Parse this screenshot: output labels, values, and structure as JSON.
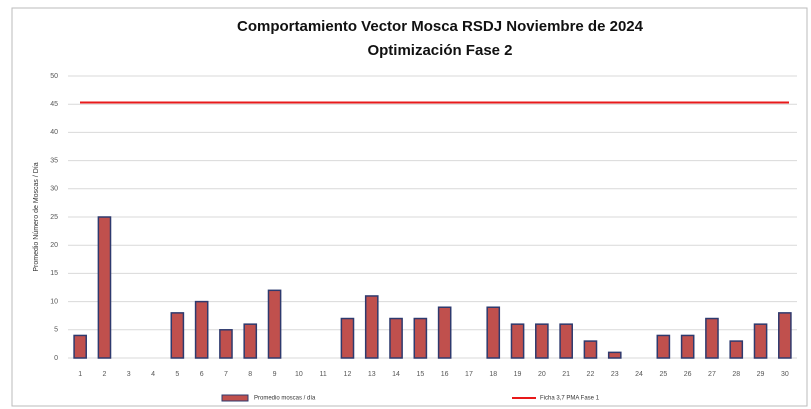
{
  "chart_data": {
    "type": "bar",
    "title": [
      "Comportamiento  Vector Mosca RSDJ Noviembre de 2024",
      "Optimización  Fase 2"
    ],
    "y_label": "Promedio Número de Moscas  / Día",
    "categories": [
      "1",
      "2",
      "3",
      "4",
      "5",
      "6",
      "7",
      "8",
      "9",
      "10",
      "11",
      "12",
      "13",
      "14",
      "15",
      "16",
      "17",
      "18",
      "19",
      "20",
      "21",
      "22",
      "23",
      "24",
      "25",
      "26",
      "27",
      "28",
      "29",
      "30"
    ],
    "series": [
      {
        "name": "Promedio moscas / día",
        "color": "#c0504d",
        "values": [
          4,
          25,
          0,
          0,
          8,
          10,
          5,
          6,
          12,
          0,
          0,
          7,
          11,
          7,
          7,
          9,
          0,
          9,
          6,
          6,
          6,
          3,
          1,
          0,
          4,
          4,
          7,
          3,
          6,
          8
        ]
      }
    ],
    "reference_line": {
      "name": "Ficha 3,7 PMA Fase 1",
      "color": "#e8191a",
      "value": 45.3
    },
    "ylim": [
      0,
      50
    ],
    "yticks": [
      0,
      5,
      10,
      15,
      20,
      25,
      30,
      35,
      40,
      45,
      50
    ],
    "grid": true,
    "legend": "bottom"
  }
}
